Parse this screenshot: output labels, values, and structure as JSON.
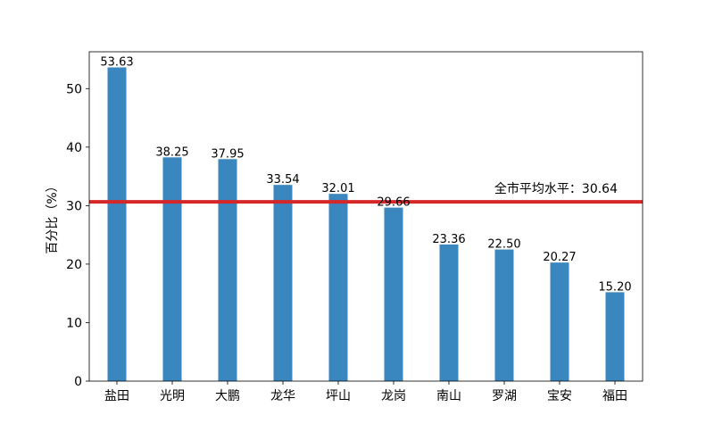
{
  "chart_data": {
    "type": "bar",
    "title": "",
    "xlabel": "",
    "ylabel": "百分比（%）",
    "ylim": [
      0,
      56.3
    ],
    "yticks": [
      0,
      10,
      20,
      30,
      40,
      50
    ],
    "categories": [
      "盐田",
      "光明",
      "大鹏",
      "龙华",
      "坪山",
      "龙岗",
      "南山",
      "罗湖",
      "宝安",
      "福田"
    ],
    "values": [
      53.63,
      38.25,
      37.95,
      33.54,
      32.01,
      29.66,
      23.36,
      22.5,
      20.27,
      15.2
    ],
    "value_labels": [
      "53.63",
      "38.25",
      "37.95",
      "33.54",
      "32.01",
      "29.66",
      "23.36",
      "22.50",
      "20.27",
      "15.20"
    ],
    "reference_line": {
      "value": 30.64,
      "label": "全市平均水平：30.64",
      "color": "#d62728"
    },
    "bar_color": "#3a87c0",
    "grid": false,
    "legend": "none"
  }
}
